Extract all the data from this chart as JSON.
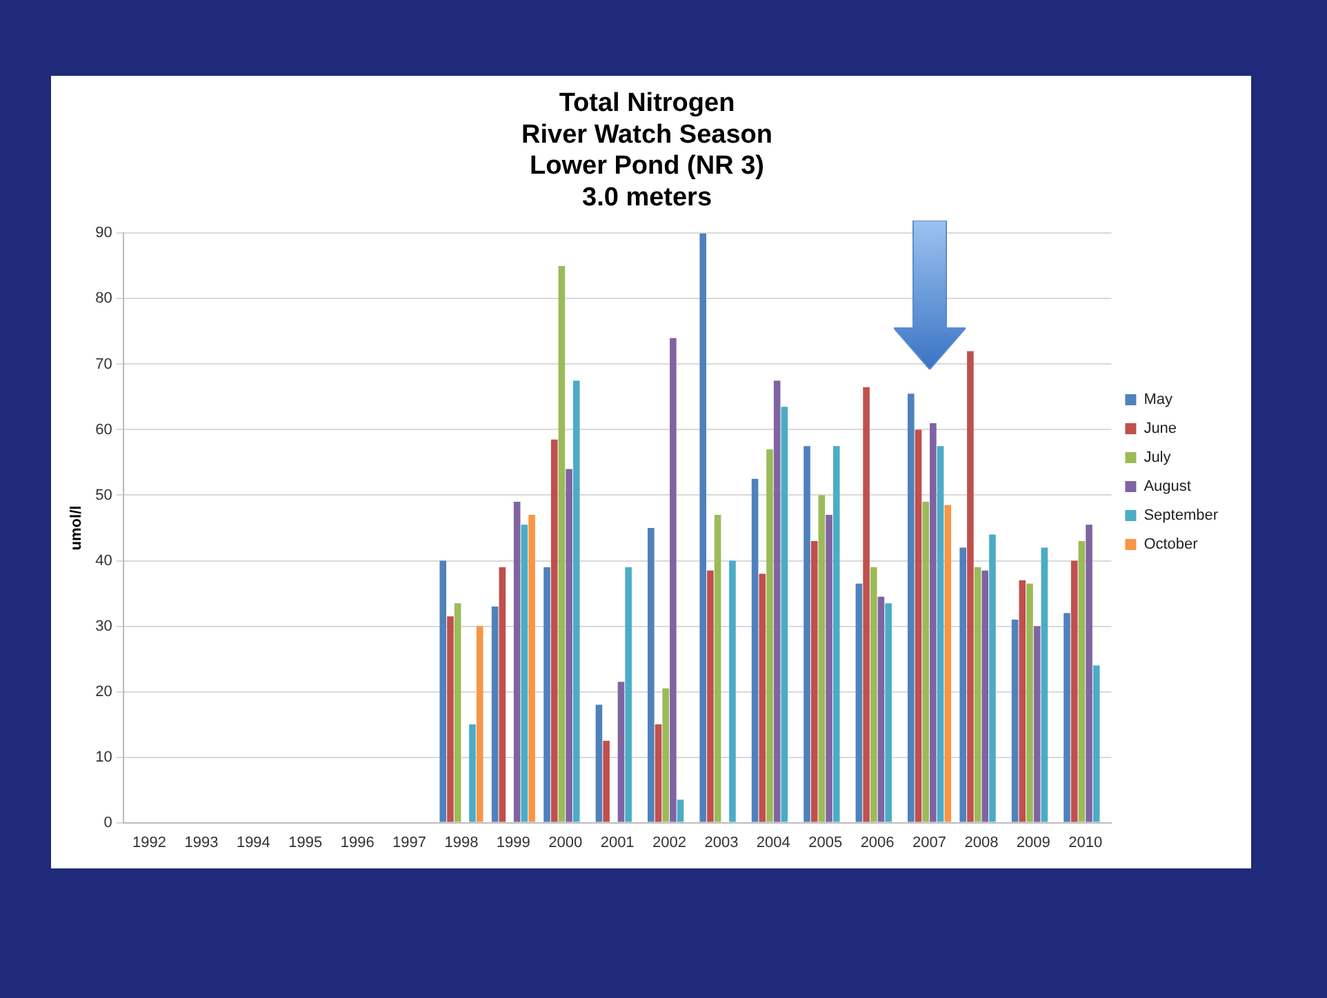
{
  "chart_data": {
    "type": "bar",
    "title": [
      "Total Nitrogen",
      "River Watch Season",
      "Lower Pond (NR 3)",
      "3.0 meters"
    ],
    "ylabel": "umol/l",
    "categories": [
      "1992",
      "1993",
      "1994",
      "1995",
      "1996",
      "1997",
      "1998",
      "1999",
      "2000",
      "2001",
      "2002",
      "2003",
      "2004",
      "2005",
      "2006",
      "2007",
      "2008",
      "2009",
      "2010"
    ],
    "series": [
      {
        "name": "May",
        "color": "#4f81bd",
        "values": [
          null,
          null,
          null,
          null,
          null,
          null,
          40,
          33,
          39,
          18,
          45,
          90,
          52.5,
          57.5,
          36.5,
          65.5,
          42,
          31,
          32
        ]
      },
      {
        "name": "June",
        "color": "#c0504d",
        "values": [
          null,
          null,
          null,
          null,
          null,
          null,
          31.5,
          39,
          58.5,
          12.5,
          15,
          38.5,
          38,
          43,
          66.5,
          60,
          72,
          37,
          40
        ]
      },
      {
        "name": "July",
        "color": "#9bbb59",
        "values": [
          null,
          null,
          null,
          null,
          null,
          null,
          33.5,
          null,
          85,
          null,
          20.5,
          47,
          57,
          50,
          39,
          49,
          39,
          36.5,
          43
        ]
      },
      {
        "name": "August",
        "color": "#8064a2",
        "values": [
          null,
          null,
          null,
          null,
          null,
          null,
          null,
          49,
          54,
          21.5,
          74,
          null,
          67.5,
          47,
          34.5,
          61,
          38.5,
          30,
          45.5
        ]
      },
      {
        "name": "September",
        "color": "#4bacc6",
        "values": [
          null,
          null,
          null,
          null,
          null,
          null,
          15,
          45.5,
          67.5,
          39,
          3.5,
          40,
          63.5,
          57.5,
          33.5,
          57.5,
          44,
          42,
          24
        ]
      },
      {
        "name": "October",
        "color": "#f79646",
        "values": [
          null,
          null,
          null,
          null,
          null,
          null,
          30,
          47,
          null,
          null,
          null,
          null,
          null,
          null,
          null,
          48.5,
          null,
          null,
          null
        ]
      }
    ],
    "ylim": [
      0,
      90
    ],
    "yticks": [
      0,
      10,
      20,
      30,
      40,
      50,
      60,
      70,
      80,
      90
    ],
    "grid": "y",
    "legend": "right"
  }
}
